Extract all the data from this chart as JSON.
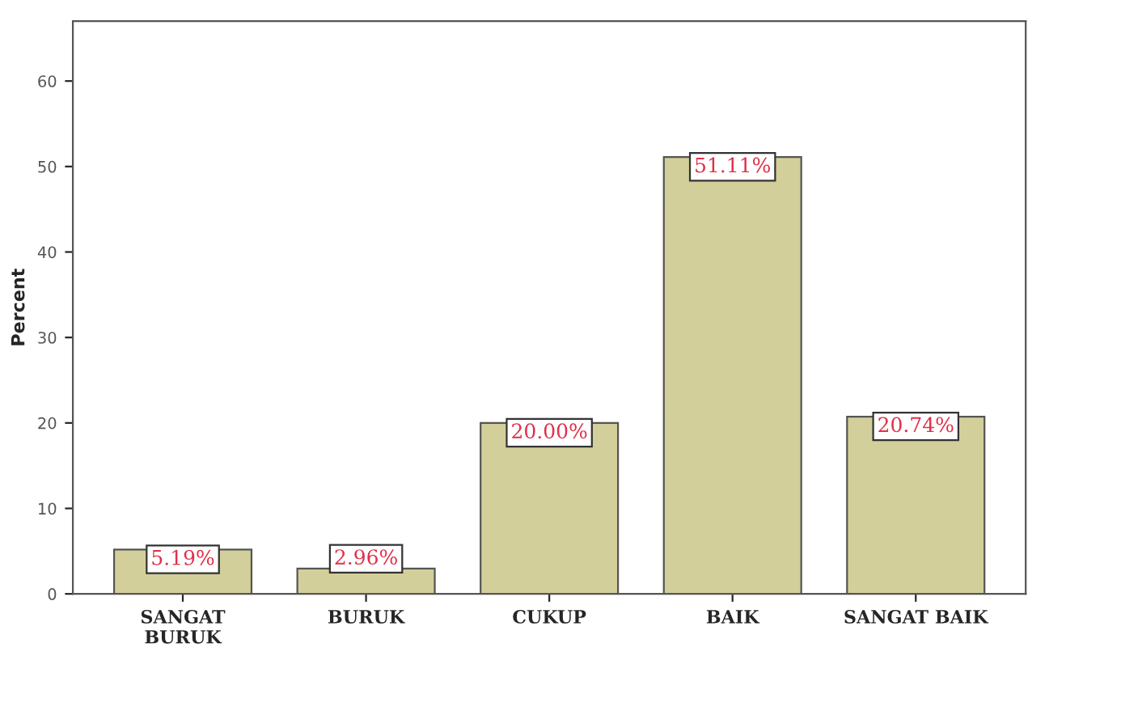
{
  "chart_data": {
    "type": "bar",
    "ylabel": "Percent",
    "categories": [
      "SANGAT\nBURUK",
      "BURUK",
      "CUKUP",
      "BAIK",
      "SANGAT BAIK"
    ],
    "values": [
      5.19,
      2.96,
      20.0,
      51.11,
      20.74
    ],
    "value_labels": [
      "5.19%",
      "2.96%",
      "20.00%",
      "51.11%",
      "20.74%"
    ],
    "color": "#d3cf9a",
    "ylim": [
      0,
      67
    ],
    "yticks": [
      0,
      10,
      20,
      30,
      40,
      50,
      60
    ],
    "grid": false
  }
}
